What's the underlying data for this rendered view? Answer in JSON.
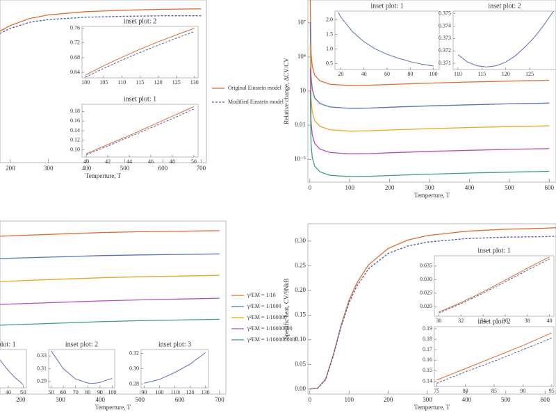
{
  "chart_data": [
    {
      "type": "line",
      "x_label": "Temperture, T",
      "xlim": [
        173,
        714
      ],
      "ylim": [
        0,
        0.35
      ],
      "xticks": [
        200,
        300,
        400,
        500,
        600,
        700
      ],
      "legend": "middle-right",
      "series": [
        {
          "name": "Original Einstein model",
          "color": "#e06a2e",
          "style": "solid",
          "x": [
            173,
            200,
            250,
            300,
            400,
            500,
            600,
            700
          ],
          "values": [
            0.283,
            0.295,
            0.31,
            0.318,
            0.325,
            0.328,
            0.33,
            0.331
          ]
        },
        {
          "name": "Modified Einstein model",
          "color": "#4a5aa8",
          "style": "dashed",
          "x": [
            173,
            200,
            250,
            300,
            400,
            500,
            600,
            700
          ],
          "values": [
            0.278,
            0.289,
            0.302,
            0.308,
            0.313,
            0.315,
            0.316,
            0.316
          ]
        }
      ],
      "insets": [
        {
          "type": "line",
          "title": "inset plot: 2",
          "xlim": [
            99,
            131
          ],
          "ylim": [
            0.625,
            0.765
          ],
          "xticks": [
            100,
            105,
            110,
            115,
            120,
            125,
            130
          ],
          "yticks": [
            0.64,
            0.68,
            0.72,
            0.76
          ],
          "series": [
            {
              "color": "#e06a2e",
              "style": "solid",
              "x": [
                100,
                105,
                110,
                115,
                120,
                125,
                130
              ],
              "values": [
                0.633,
                0.658,
                0.681,
                0.703,
                0.723,
                0.742,
                0.76
              ]
            },
            {
              "color": "#4a5aa8",
              "style": "dashed",
              "x": [
                100,
                105,
                110,
                115,
                120,
                125,
                130
              ],
              "values": [
                0.627,
                0.651,
                0.673,
                0.694,
                0.714,
                0.733,
                0.751
              ]
            }
          ]
        },
        {
          "type": "line",
          "title": "inset plot: 1",
          "xlim": [
            39.6,
            50.4
          ],
          "ylim": [
            0.085,
            0.195
          ],
          "xticks": [
            40,
            42,
            44,
            46,
            48,
            50
          ],
          "yticks": [
            {
              "value": 0.1,
              "label": "0.10"
            },
            0.12,
            0.14,
            0.16,
            0.18
          ],
          "series": [
            {
              "color": "#e06a2e",
              "style": "solid",
              "x": [
                40,
                42,
                44,
                46,
                48,
                50
              ],
              "values": [
                0.092,
                0.111,
                0.13,
                0.15,
                0.17,
                0.19
              ]
            },
            {
              "color": "#4a5aa8",
              "style": "dashed",
              "x": [
                40,
                42,
                44,
                46,
                48,
                50
              ],
              "values": [
                0.09,
                0.108,
                0.127,
                0.146,
                0.165,
                0.185
              ]
            }
          ]
        }
      ]
    },
    {
      "type": "line",
      "x_label": "Temperture, T",
      "y_label": "Relative change, ΔCV/CV",
      "log_y": true,
      "xlim": [
        -5,
        617
      ],
      "ylim": [
        1e-07,
        1000000000.0
      ],
      "xticks": [
        0,
        100,
        200,
        300,
        400,
        500,
        600
      ],
      "yticks": [
        {
          "value": 10000000,
          "label": "10⁷"
        },
        {
          "value": 10000,
          "label": "10⁴"
        },
        10,
        0.01,
        {
          "value": 1e-05,
          "label": "10⁻⁵"
        }
      ],
      "series": [
        {
          "color": "#e06a2e",
          "style": "solid",
          "x": [
            1,
            3,
            6,
            12,
            25,
            50,
            100,
            150,
            200,
            300,
            400,
            500,
            600
          ],
          "values": [
            1000000000.0,
            20000,
            1500,
            250,
            80,
            40,
            30,
            32,
            38,
            50,
            62,
            75,
            88
          ]
        },
        {
          "color": "#5b6fb5",
          "style": "solid",
          "x": [
            1,
            3,
            6,
            12,
            25,
            50,
            100,
            150,
            200,
            300,
            400,
            500,
            600
          ],
          "values": [
            10000000.0,
            200,
            15,
            2.5,
            0.8,
            0.4,
            0.3,
            0.32,
            0.38,
            0.5,
            0.62,
            0.75,
            0.88
          ]
        },
        {
          "color": "#e8a623",
          "style": "solid",
          "x": [
            1,
            3,
            6,
            12,
            25,
            50,
            100,
            150,
            200,
            300,
            400,
            500,
            600
          ],
          "values": [
            100000.0,
            2,
            0.15,
            0.025,
            0.008,
            0.004,
            0.003,
            0.0032,
            0.0038,
            0.005,
            0.0062,
            0.0075,
            0.0088
          ]
        },
        {
          "color": "#b44fb5",
          "style": "solid",
          "x": [
            1,
            3,
            6,
            12,
            25,
            50,
            100,
            150,
            200,
            300,
            400,
            500,
            600
          ],
          "values": [
            1000,
            0.02,
            0.0015,
            0.00025,
            8e-05,
            4e-05,
            3e-05,
            3.2e-05,
            3.8e-05,
            5e-05,
            6.2e-05,
            7.5e-05,
            8.8e-05
          ]
        },
        {
          "color": "#3f9d75",
          "style": "solid",
          "x": [
            1,
            3,
            6,
            12,
            25,
            50,
            100,
            150,
            200,
            300,
            400,
            500,
            600
          ],
          "values": [
            10,
            0.0002,
            1.5e-05,
            2.5e-06,
            8e-07,
            4e-07,
            3e-07,
            3.2e-07,
            3.8e-07,
            5e-07,
            6.2e-07,
            7.5e-07,
            8.8e-07
          ]
        }
      ],
      "insets": [
        {
          "type": "line",
          "title": "inset plot: 1",
          "xlim": [
            15,
            105
          ],
          "ylim": [
            0.3,
            2.3
          ],
          "xticks": [
            20,
            40,
            60,
            80,
            100
          ],
          "yticks": [
            0.5,
            {
              "value": 1,
              "label": "1.0"
            },
            1.5,
            {
              "value": 2,
              "label": "2.0"
            }
          ],
          "series": [
            {
              "color": "#5b6fb5",
              "style": "solid",
              "x": [
                18,
                20,
                30,
                40,
                50,
                60,
                70,
                80,
                90,
                100
              ],
              "values": [
                2.25,
                2.1,
                1.6,
                1.25,
                1,
                0.82,
                0.68,
                0.57,
                0.48,
                0.42
              ]
            }
          ]
        },
        {
          "type": "line",
          "title": "inset plot: 2",
          "xlim": [
            109,
            130.5
          ],
          "ylim": [
            0.3705,
            0.3752
          ],
          "xticks": [
            110,
            115,
            120,
            125
          ],
          "yticks": [
            0.371,
            0.372,
            0.373,
            0.374,
            0.375
          ],
          "series": [
            {
              "color": "#5b6fb5",
              "style": "solid",
              "x": [
                110,
                112,
                114,
                116,
                118,
                120,
                122,
                124,
                126,
                128,
                130
              ],
              "values": [
                0.3717,
                0.3711,
                0.3708,
                0.3707,
                0.3708,
                0.3711,
                0.3716,
                0.3723,
                0.3731,
                0.3741,
                0.3752
              ]
            }
          ]
        }
      ]
    },
    {
      "type": "line",
      "x_label": "Temperture, T",
      "xlim": [
        148,
        716
      ],
      "ylim": [
        0,
        1
      ],
      "xticks": [
        200,
        300,
        400,
        500,
        600,
        700
      ],
      "legend": "middle-right",
      "series": [
        {
          "name": "γ²EM = 1/10",
          "color": "#e06a2e",
          "style": "solid",
          "x": [
            148,
            300,
            400,
            500,
            600,
            700
          ],
          "values": [
            0.912,
            0.925,
            0.933,
            0.938,
            0.941,
            0.944
          ]
        },
        {
          "name": "γ²EM = 1/1000",
          "color": "#5b6fb5",
          "style": "solid",
          "x": [
            148,
            300,
            400,
            500,
            600,
            700
          ],
          "values": [
            0.783,
            0.793,
            0.8,
            0.804,
            0.807,
            0.81
          ]
        },
        {
          "name": "γ²EM = 1/100000",
          "color": "#e8a623",
          "style": "solid",
          "x": [
            148,
            300,
            400,
            500,
            600,
            700
          ],
          "values": [
            0.65,
            0.664,
            0.672,
            0.678,
            0.682,
            0.686
          ]
        },
        {
          "name": "γ²EM = 1/10000000",
          "color": "#b44fb5",
          "style": "solid",
          "x": [
            148,
            300,
            400,
            500,
            600,
            700
          ],
          "values": [
            0.518,
            0.53,
            0.538,
            0.544,
            0.549,
            0.554
          ]
        },
        {
          "name": "γ²EM = 1/1000000000",
          "color": "#3f9d75",
          "style": "solid",
          "x": [
            148,
            300,
            400,
            500,
            600,
            700
          ],
          "values": [
            0.398,
            0.41,
            0.418,
            0.424,
            0.428,
            0.432
          ]
        }
      ],
      "insets": [
        {
          "type": "line",
          "title": "inset plot: 1",
          "xlim": [
            16,
            52
          ],
          "ylim": [
            0,
            1
          ],
          "xticks": [
            40,
            50
          ],
          "series": [
            {
              "color": "#5b6fb5",
              "style": "solid",
              "x": [
                30,
                35,
                40,
                45,
                50
              ],
              "values": [
                0.95,
                0.7,
                0.45,
                0.25,
                0.08
              ]
            }
          ]
        },
        {
          "type": "line",
          "title": "inset plot: 2",
          "xlim": [
            48,
            102
          ],
          "ylim": [
            0.28,
            0.34
          ],
          "xticks": [
            50,
            60,
            70,
            80,
            90,
            100
          ],
          "yticks": [
            0.29,
            0.31,
            0.33
          ],
          "series": [
            {
              "color": "#5b6fb5",
              "style": "solid",
              "x": [
                50,
                60,
                70,
                80,
                85,
                90,
                100
              ],
              "values": [
                0.338,
                0.31,
                0.294,
                0.2875,
                0.287,
                0.2885,
                0.295
              ]
            }
          ]
        },
        {
          "type": "line",
          "title": "inset plot: 3",
          "xlim": [
            88,
            132
          ],
          "ylim": [
            0.275,
            0.325
          ],
          "xticks": [
            90,
            100,
            110,
            120,
            130
          ],
          "yticks": [
            0.28,
            {
              "value": 0.3,
              "label": "0.30"
            },
            0.32
          ],
          "series": [
            {
              "color": "#5b6fb5",
              "style": "solid",
              "x": [
                90,
                100,
                110,
                120,
                130
              ],
              "values": [
                0.281,
                0.286,
                0.295,
                0.306,
                0.321
              ]
            }
          ]
        }
      ]
    },
    {
      "type": "line",
      "x_label": "Temperture, T",
      "y_label": "Specific heat, CV/9NkB",
      "xlim": [
        -5,
        628
      ],
      "ylim": [
        -0.01,
        0.335
      ],
      "xticks": [
        0,
        100,
        200,
        300,
        400,
        500,
        600
      ],
      "yticks": [
        {
          "value": 0,
          "label": "0.00"
        },
        0.05,
        {
          "value": 0.1,
          "label": "0.10"
        },
        0.15,
        {
          "value": 0.2,
          "label": "0.20"
        },
        0.25,
        {
          "value": 0.3,
          "label": "0.30"
        }
      ],
      "series": [
        {
          "color": "#e06a2e",
          "style": "solid",
          "x": [
            0,
            20,
            40,
            60,
            80,
            100,
            120,
            150,
            200,
            250,
            300,
            400,
            500,
            600,
            628
          ],
          "values": [
            0,
            0.002,
            0.02,
            0.07,
            0.13,
            0.18,
            0.215,
            0.252,
            0.285,
            0.302,
            0.311,
            0.32,
            0.324,
            0.326,
            0.327
          ]
        },
        {
          "color": "#4a5aa8",
          "style": "dashed",
          "x": [
            0,
            20,
            40,
            60,
            80,
            100,
            120,
            150,
            200,
            250,
            300,
            400,
            500,
            600,
            628
          ],
          "values": [
            0,
            0.002,
            0.019,
            0.068,
            0.127,
            0.175,
            0.209,
            0.244,
            0.275,
            0.29,
            0.298,
            0.305,
            0.308,
            0.309,
            0.31
          ]
        }
      ],
      "insets": [
        {
          "type": "line",
          "title": "inset plot: 1",
          "xlim": [
            29.6,
            40.4
          ],
          "ylim": [
            0.0165,
            0.0388
          ],
          "xticks": [
            30,
            32,
            34,
            36,
            38,
            40
          ],
          "yticks": [
            {
              "value": 0.02,
              "label": "0.020"
            },
            0.025,
            {
              "value": 0.03,
              "label": "0.030"
            },
            0.035
          ],
          "series": [
            {
              "color": "#e06a2e",
              "style": "solid",
              "x": [
                30,
                32,
                34,
                36,
                38,
                40
              ],
              "values": [
                0.018,
                0.0215,
                0.0255,
                0.0298,
                0.0342,
                0.0384
              ]
            },
            {
              "color": "#4a5aa8",
              "style": "dashed",
              "x": [
                30,
                32,
                34,
                36,
                38,
                40
              ],
              "values": [
                0.0177,
                0.0211,
                0.025,
                0.0292,
                0.0335,
                0.0376
              ]
            }
          ]
        },
        {
          "type": "line",
          "title": "inset plot: 2",
          "xlim": [
            74.6,
            95.4
          ],
          "ylim": [
            0.135,
            0.192
          ],
          "xticks": [
            75,
            80,
            85,
            90,
            95
          ],
          "yticks": [
            0.14,
            0.15,
            0.16,
            0.17,
            0.18,
            0.19
          ],
          "series": [
            {
              "color": "#e06a2e",
              "style": "solid",
              "x": [
                75,
                80,
                85,
                90,
                95
              ],
              "values": [
                0.141,
                0.152,
                0.163,
                0.174,
                0.186
              ]
            },
            {
              "color": "#4a5aa8",
              "style": "dashed",
              "x": [
                75,
                80,
                85,
                90,
                95
              ],
              "values": [
                0.138,
                0.149,
                0.159,
                0.17,
                0.181
              ]
            }
          ]
        }
      ]
    }
  ]
}
